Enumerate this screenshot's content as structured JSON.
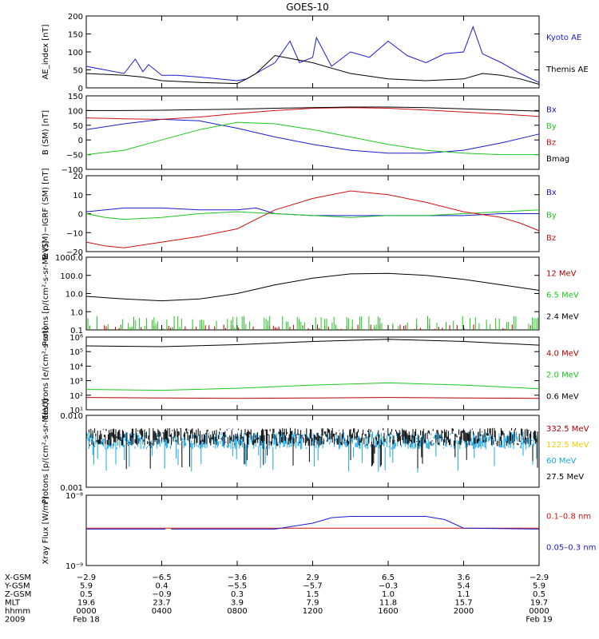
{
  "figure": {
    "title": "GOES-10",
    "bottom_axis": {
      "row_labels": [
        "X-GSM",
        "Y-GSM",
        "Z-GSM",
        "MLT",
        "hhmm",
        "2009"
      ],
      "columns": [
        {
          "X-GSM": "−2.9",
          "Y-GSM": "5.9",
          "Z-GSM": "0.5",
          "MLT": "19.6",
          "hhmm": "0000",
          "2009": "Feb 18"
        },
        {
          "X-GSM": "−6.5",
          "Y-GSM": "0.4",
          "Z-GSM": "−0.9",
          "MLT": "23.7",
          "hhmm": "0400",
          "2009": ""
        },
        {
          "X-GSM": "−3.6",
          "Y-GSM": "−5.5",
          "Z-GSM": "0.3",
          "MLT": "3.9",
          "hhmm": "0800",
          "2009": ""
        },
        {
          "X-GSM": "2.9",
          "Y-GSM": "−5.7",
          "Z-GSM": "1.5",
          "MLT": "7.9",
          "hhmm": "1200",
          "2009": ""
        },
        {
          "X-GSM": "6.5",
          "Y-GSM": "−0.3",
          "Z-GSM": "1.0",
          "MLT": "11.8",
          "hhmm": "1600",
          "2009": ""
        },
        {
          "X-GSM": "3.6",
          "Y-GSM": "5.4",
          "Z-GSM": "1.1",
          "MLT": "15.7",
          "hhmm": "2000",
          "2009": ""
        },
        {
          "X-GSM": "−2.9",
          "Y-GSM": "5.9",
          "Z-GSM": "0.5",
          "MLT": "19.7",
          "hhmm": "0000",
          "2009": "Feb 19"
        }
      ]
    }
  },
  "chart_data": [
    {
      "type": "line",
      "ylabel": "AE_index [nT]",
      "ylim": [
        0,
        200
      ],
      "yticks": [
        "0",
        "50",
        "100",
        "150",
        "200"
      ],
      "x_unit": "hour of day",
      "series": [
        {
          "name": "Kyoto AE",
          "color": "#1a1ad0",
          "x": [
            0,
            2,
            2.6,
            3,
            3.3,
            4,
            4.8,
            6,
            7,
            8,
            8.5,
            9,
            10,
            10.8,
            11.3,
            12,
            12.2,
            13,
            14,
            15,
            16,
            17,
            18,
            19,
            20,
            20.5,
            21,
            22,
            23,
            24
          ],
          "y": [
            60,
            40,
            80,
            45,
            65,
            35,
            35,
            30,
            25,
            20,
            25,
            40,
            70,
            130,
            70,
            85,
            140,
            60,
            100,
            85,
            130,
            90,
            70,
            95,
            100,
            170,
            95,
            70,
            40,
            15
          ]
        },
        {
          "name": "Themis AE",
          "color": "#000000",
          "x": [
            0,
            2,
            3,
            4,
            6,
            8,
            8.5,
            9,
            10,
            11,
            12,
            13,
            14,
            16,
            18,
            20,
            21,
            22,
            23,
            24
          ],
          "y": [
            40,
            35,
            30,
            20,
            15,
            12,
            25,
            40,
            90,
            80,
            70,
            55,
            40,
            25,
            20,
            25,
            40,
            35,
            25,
            10
          ]
        }
      ]
    },
    {
      "type": "line",
      "ylabel": "B (SM) [nT]",
      "ylim": [
        -100,
        150
      ],
      "yticks": [
        "−100",
        "−50",
        "0",
        "50",
        "100",
        "150"
      ],
      "series": [
        {
          "name": "Bx",
          "color": "#1a1ad0",
          "x": [
            0,
            2,
            4,
            6,
            8,
            10,
            12,
            14,
            16,
            18,
            20,
            22,
            24
          ],
          "y": [
            35,
            55,
            70,
            65,
            40,
            10,
            -15,
            -35,
            -45,
            -45,
            -35,
            -10,
            20
          ]
        },
        {
          "name": "By",
          "color": "#1ec81e",
          "x": [
            0,
            2,
            4,
            6,
            8,
            10,
            12,
            14,
            16,
            18,
            20,
            22,
            24
          ],
          "y": [
            -50,
            -35,
            0,
            35,
            60,
            55,
            35,
            10,
            -15,
            -35,
            -45,
            -50,
            -50
          ]
        },
        {
          "name": "Bz",
          "color": "#d01010",
          "x": [
            0,
            2,
            4,
            6,
            8,
            10,
            12,
            14,
            16,
            18,
            20,
            22,
            24
          ],
          "y": [
            75,
            72,
            70,
            78,
            90,
            100,
            108,
            110,
            108,
            102,
            95,
            88,
            80
          ]
        },
        {
          "name": "Bmag",
          "color": "#000000",
          "x": [
            0,
            2,
            4,
            6,
            8,
            10,
            12,
            14,
            16,
            18,
            20,
            22,
            24
          ],
          "y": [
            100,
            100,
            101,
            103,
            105,
            108,
            110,
            112,
            112,
            110,
            106,
            102,
            98
          ]
        }
      ]
    },
    {
      "type": "line",
      "ylabel": "B (SM)−IGRF (SM) [nT]",
      "ylim": [
        -20,
        20
      ],
      "yticks": [
        "−20",
        "−10",
        "0",
        "10",
        "20"
      ],
      "series": [
        {
          "name": "Bx",
          "color": "#1a1ad0",
          "x": [
            0,
            2,
            4,
            6,
            8,
            9,
            10,
            12,
            14,
            16,
            18,
            20,
            22,
            24
          ],
          "y": [
            1,
            3,
            3,
            2,
            2,
            3,
            0,
            -1,
            -1,
            -1,
            -1,
            -1,
            0,
            0
          ]
        },
        {
          "name": "By",
          "color": "#1ec81e",
          "x": [
            0,
            1,
            2,
            4,
            6,
            8,
            10,
            12,
            14,
            16,
            18,
            20,
            22,
            24
          ],
          "y": [
            0,
            -2,
            -3,
            -2,
            0,
            1,
            0,
            -1,
            -2,
            -1,
            -1,
            0,
            1,
            2
          ]
        },
        {
          "name": "Bz",
          "color": "#d01010",
          "x": [
            0,
            1,
            2,
            4,
            6,
            8,
            9,
            10,
            12,
            14,
            16,
            18,
            20,
            22,
            23,
            24
          ],
          "y": [
            -15,
            -17,
            -18,
            -15,
            -12,
            -8,
            -3,
            2,
            8,
            12,
            10,
            6,
            1,
            -2,
            -5,
            -9
          ]
        }
      ]
    },
    {
      "type": "line",
      "scale": "log",
      "ylabel": "Protons [p/(cm²-s-sr-MeV)]",
      "ylim": [
        0.1,
        1000
      ],
      "yticks": [
        "0.1",
        "1.0",
        "10.0",
        "100.0",
        "1000.0"
      ],
      "series": [
        {
          "name": "12 MeV",
          "color": "#b00000",
          "kind": "spikes",
          "level": 0.1,
          "peak": 0.2
        },
        {
          "name": "6.5 MeV",
          "color": "#1ec81e",
          "kind": "spikes",
          "level": 0.1,
          "peak": 0.6
        },
        {
          "name": "2.4 MeV",
          "color": "#000000",
          "x": [
            0,
            2,
            4,
            6,
            8,
            10,
            12,
            14,
            16,
            18,
            20,
            22,
            24
          ],
          "y": [
            7,
            5,
            4,
            5,
            10,
            30,
            70,
            120,
            130,
            100,
            60,
            30,
            15
          ]
        }
      ]
    },
    {
      "type": "line",
      "scale": "log",
      "ylabel": "Electrons [e/(cm²-s-sr)]",
      "ylim": [
        10,
        1000000
      ],
      "yticks": [
        "10¹",
        "10²",
        "10³",
        "10⁴",
        "10⁵",
        "10⁶"
      ],
      "series": [
        {
          "name": "4.0 MeV",
          "color": "#b00000",
          "x": [
            0,
            4,
            8,
            12,
            16,
            20,
            24
          ],
          "y": [
            70,
            65,
            60,
            65,
            70,
            65,
            60
          ]
        },
        {
          "name": "2.0 MeV",
          "color": "#1ec81e",
          "x": [
            0,
            4,
            8,
            12,
            16,
            20,
            24
          ],
          "y": [
            250,
            220,
            300,
            500,
            700,
            500,
            280
          ]
        },
        {
          "name": "0.6 MeV",
          "color": "#000000",
          "x": [
            0,
            4,
            8,
            12,
            16,
            20,
            24
          ],
          "y": [
            250000,
            220000,
            300000,
            500000,
            700000,
            500000,
            280000
          ]
        }
      ]
    },
    {
      "type": "line",
      "scale": "log",
      "ylabel": "Protons [p/(cm²-s-sr-MeV)]",
      "ylim": [
        0.001,
        0.1
      ],
      "yticks": [
        "0.001",
        "0.010"
      ],
      "series": [
        {
          "name": "332.5 MeV",
          "color": "#b00000"
        },
        {
          "name": "122.5 MeV",
          "color": "#f0d000"
        },
        {
          "name": "60 MeV",
          "color": "#18a8e8",
          "kind": "noise",
          "center": 0.02
        },
        {
          "name": "27.5 MeV",
          "color": "#000000",
          "kind": "noise",
          "center": 0.025
        }
      ]
    },
    {
      "type": "line",
      "scale": "log",
      "ylabel": "Xray Flux [W/m²]",
      "ylim": [
        1e-09,
        1e-08
      ],
      "yticks": [
        "10⁻⁹",
        "10⁻⁸"
      ],
      "series": [
        {
          "name": "0.1–0.8 nm",
          "color": "#d01010",
          "x": [
            0,
            24
          ],
          "y": [
            3.4e-09,
            3.4e-09
          ]
        },
        {
          "name": "0.05–0.3 nm",
          "color": "#1a1ad0",
          "x": [
            0,
            4.2,
            4.3,
            4.5,
            10,
            12,
            13,
            14,
            18,
            19,
            20,
            24
          ],
          "y": [
            3.3e-09,
            3.3e-09,
            null,
            3.3e-09,
            3.3e-09,
            4e-09,
            4.8e-09,
            5e-09,
            5e-09,
            4.5e-09,
            3.4e-09,
            3.3e-09
          ]
        }
      ]
    }
  ]
}
